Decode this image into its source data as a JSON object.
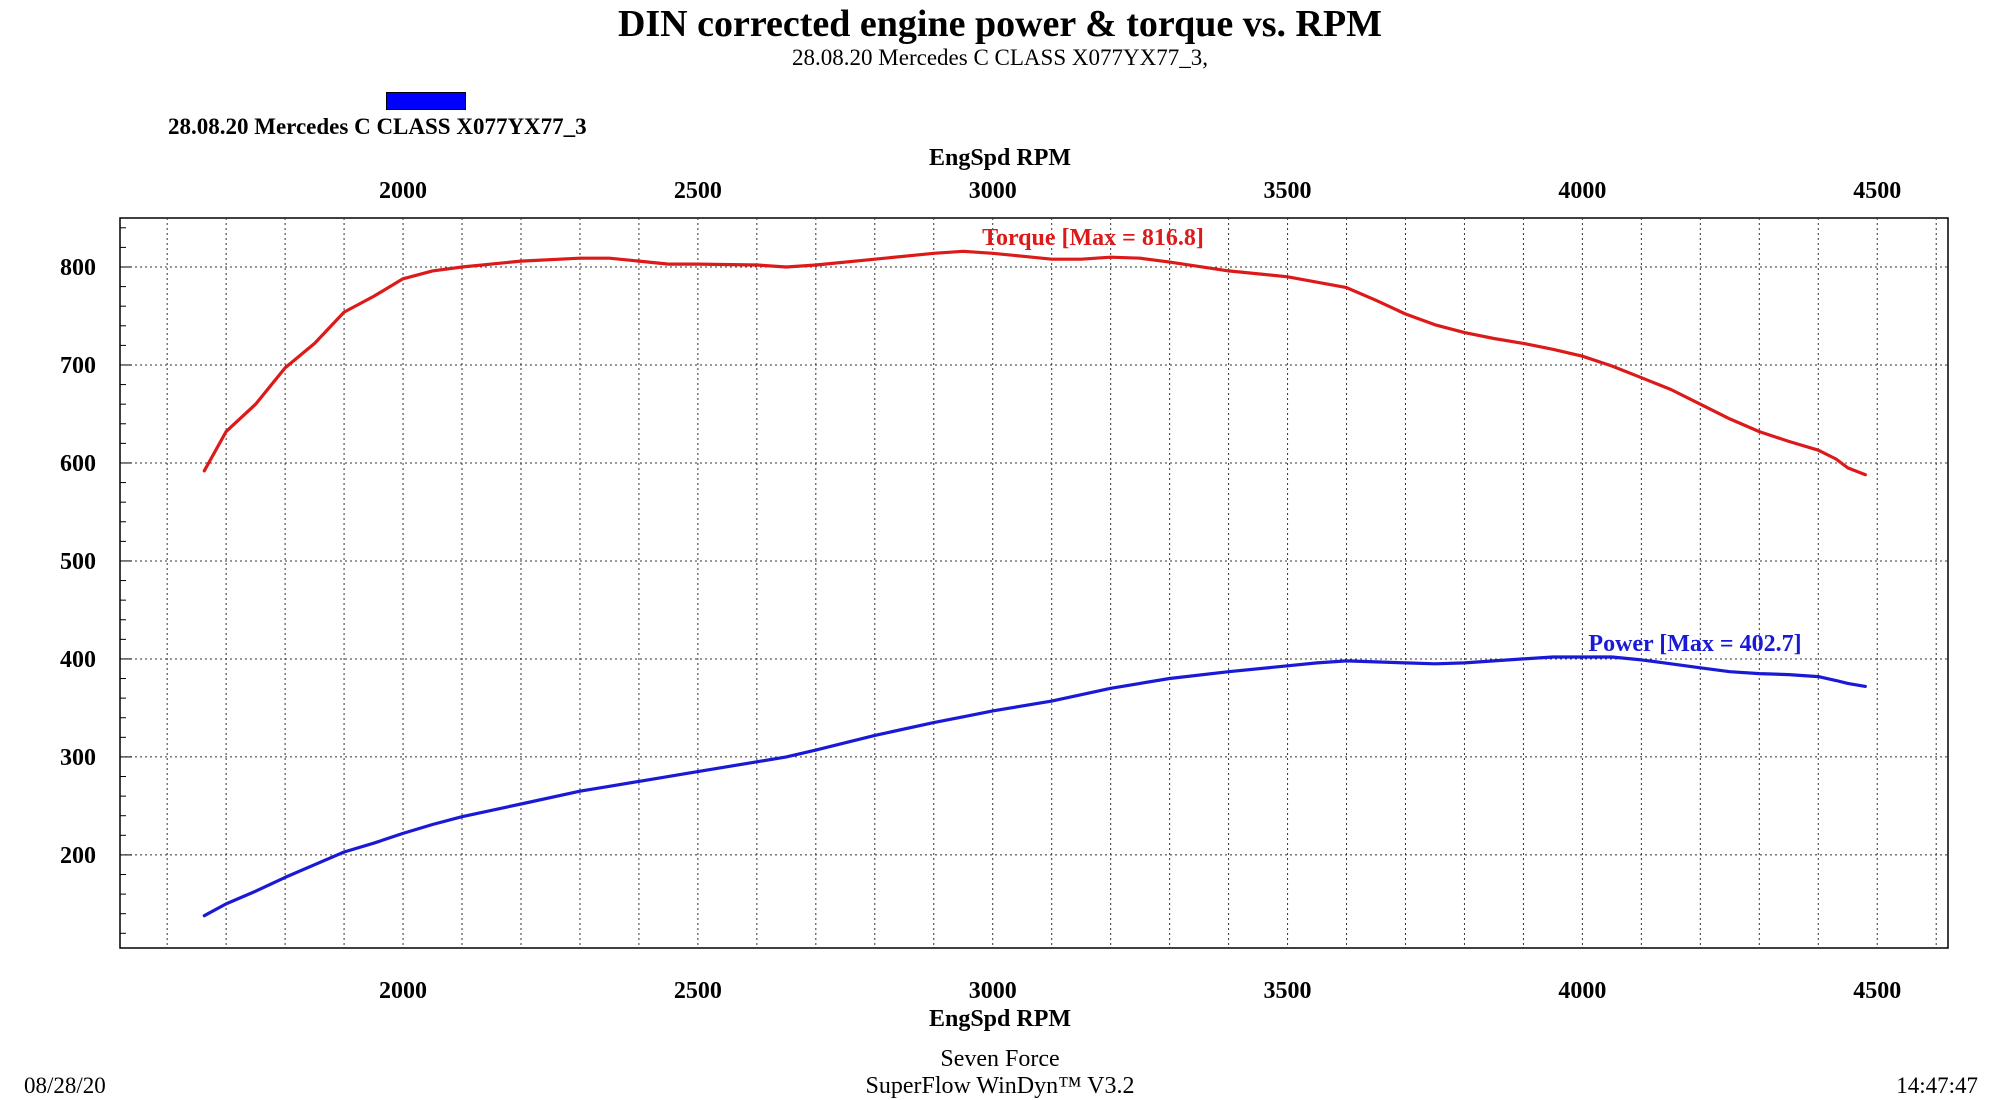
{
  "chart_data": {
    "type": "line",
    "title": "DIN corrected engine power & torque vs. RPM",
    "subtitle": "28.08.20 Mercedes C CLASS  X077YX77_3,",
    "legend": {
      "label": "28.08.20 Mercedes C CLASS  X077YX77_3",
      "color": "#0000ff",
      "placement": "top-left"
    },
    "xlabel": "EngSpd RPM",
    "xlim": [
      1520,
      4620
    ],
    "ylim": [
      105,
      850
    ],
    "xticks": [
      2000,
      2500,
      3000,
      3500,
      4000,
      4500
    ],
    "yticks": [
      200,
      300,
      400,
      500,
      600,
      700,
      800
    ],
    "grid": true,
    "series": [
      {
        "name": "Torque",
        "annotation": "Torque [Max = 816.8]",
        "color": "#dd1a1a",
        "x": [
          1663,
          1700,
          1750,
          1800,
          1850,
          1900,
          1950,
          2000,
          2050,
          2100,
          2200,
          2300,
          2350,
          2400,
          2450,
          2500,
          2600,
          2650,
          2700,
          2800,
          2900,
          2950,
          3000,
          3050,
          3100,
          3150,
          3200,
          3250,
          3300,
          3400,
          3500,
          3600,
          3650,
          3700,
          3750,
          3800,
          3850,
          3900,
          3950,
          4000,
          4050,
          4100,
          4150,
          4200,
          4250,
          4300,
          4350,
          4400,
          4430,
          4450,
          4480
        ],
        "y": [
          592,
          632,
          660,
          697,
          722,
          754,
          770,
          788,
          796,
          800,
          806,
          809,
          809,
          806,
          803,
          803,
          802,
          800,
          802,
          808,
          814,
          816,
          814,
          811,
          808,
          808,
          810,
          809,
          805,
          796,
          790,
          779,
          766,
          752,
          741,
          733,
          727,
          722,
          716,
          709,
          699,
          687,
          675,
          660,
          645,
          632,
          622,
          613,
          604,
          595,
          588
        ]
      },
      {
        "name": "Power",
        "annotation": "Power  [Max = 402.7]",
        "color": "#1a1ad6",
        "x": [
          1663,
          1700,
          1750,
          1800,
          1850,
          1900,
          1950,
          2000,
          2050,
          2100,
          2200,
          2300,
          2350,
          2400,
          2500,
          2600,
          2650,
          2700,
          2800,
          2900,
          2950,
          3000,
          3100,
          3200,
          3250,
          3300,
          3400,
          3500,
          3550,
          3600,
          3650,
          3700,
          3750,
          3800,
          3850,
          3900,
          3950,
          4000,
          4050,
          4100,
          4150,
          4200,
          4250,
          4300,
          4350,
          4400,
          4430,
          4450,
          4480
        ],
        "y": [
          138,
          150,
          163,
          177,
          190,
          203,
          212,
          222,
          231,
          239,
          252,
          265,
          270,
          275,
          285,
          295,
          300,
          307,
          322,
          335,
          341,
          347,
          357,
          370,
          375,
          380,
          387,
          393,
          396,
          398,
          397,
          396,
          395,
          396,
          398,
          400,
          402,
          402,
          402,
          399,
          395,
          391,
          387,
          385,
          384,
          382,
          378,
          375,
          372
        ]
      }
    ]
  },
  "footer": {
    "date": "08/28/20",
    "line1": "Seven Force",
    "line2": "SuperFlow WinDyn™ V3.2",
    "time": "14:47:47"
  }
}
